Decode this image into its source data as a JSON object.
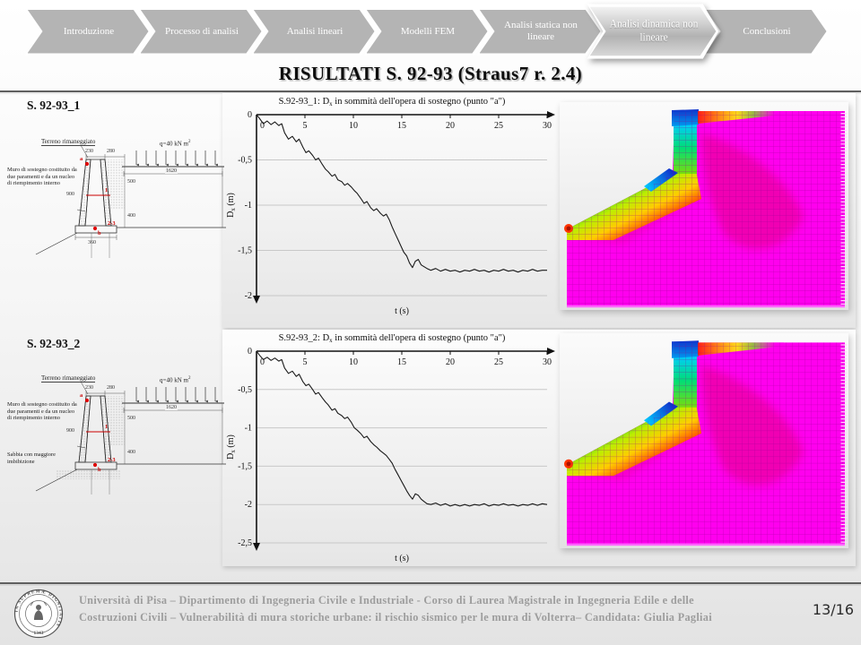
{
  "nav": {
    "items": [
      {
        "label": "Introduzione",
        "active": false
      },
      {
        "label": "Processo di analisi",
        "active": false
      },
      {
        "label": "Analisi lineari",
        "active": false
      },
      {
        "label": "Modelli FEM",
        "active": false
      },
      {
        "label": "Analisi statica non lineare",
        "active": false
      },
      {
        "label": "Analisi dinamica non lineare",
        "active": true
      },
      {
        "label": "Conclusioni",
        "active": false
      }
    ]
  },
  "title": "RISULTATI  S. 92-93 (Straus7 r. 2.4)",
  "sections": [
    {
      "heading": "S. 92-93_1",
      "diagram": {
        "terrain": "Terreno rimaneggiato",
        "load": "q=40 kN m",
        "load_exp": "2",
        "wall_desc": "Muro di sostegno costituito da due paramenti e da un nucleo di riempimento interno",
        "dims": {
          "top_left": "230",
          "top_right": "280",
          "right_upper": "500",
          "right_lower": "400",
          "embank": "1620",
          "mid": "900",
          "base": "360"
        },
        "markers": {
          "a": "a",
          "b": "b",
          "mid_line": "1",
          "base_pts": "2-3"
        }
      }
    },
    {
      "heading": "S. 92-93_2",
      "diagram": {
        "terrain": "Terreno rimaneggiato",
        "load": "q=40 kN m",
        "load_exp": "2",
        "wall_desc": "Muro di sostegno costituito da due paramenti e da un nucleo di riempimento interno",
        "sand": "Sabbia con maggiore imbibizione",
        "dims": {
          "top_left": "230",
          "top_right": "280",
          "right_upper": "500",
          "right_lower": "400",
          "embank": "1620",
          "mid": "900"
        },
        "markers": {
          "a": "a",
          "b": "b",
          "mid_line": "1",
          "base_pts": "2-3"
        }
      }
    }
  ],
  "chart_data": [
    {
      "type": "line",
      "title": "S.92-93_1: Dx in sommità dell'opera di sostegno (punto \"a\")",
      "title_parts": {
        "t1": "S.92-93_1: D",
        "sub": "x",
        "t2": " in sommità dell'opera di sostegno (punto \"a\")"
      },
      "xlabel": "t (s)",
      "ylabel": "Dx (m)",
      "ylabel_parts": {
        "t1": "D",
        "sub": "x",
        "t2": " (m)"
      },
      "xlim": [
        0,
        30
      ],
      "ylim": [
        -2,
        0
      ],
      "xticks": [
        0,
        5,
        10,
        15,
        20,
        25,
        30
      ],
      "yticks": [
        0,
        -0.5,
        -1,
        -1.5,
        -2
      ],
      "ytick_labels": [
        "0",
        "-0,5",
        "-1",
        "-1,5",
        "-2"
      ],
      "grid": true,
      "points": [
        [
          0,
          0
        ],
        [
          0.3,
          -0.04
        ],
        [
          0.7,
          -0.1
        ],
        [
          1.1,
          -0.07
        ],
        [
          1.5,
          -0.11
        ],
        [
          1.9,
          -0.08
        ],
        [
          2.3,
          -0.12
        ],
        [
          2.6,
          -0.1
        ],
        [
          2.9,
          -0.2
        ],
        [
          3.3,
          -0.27
        ],
        [
          3.7,
          -0.24
        ],
        [
          4.1,
          -0.3
        ],
        [
          4.4,
          -0.27
        ],
        [
          4.8,
          -0.36
        ],
        [
          5.1,
          -0.42
        ],
        [
          5.4,
          -0.4
        ],
        [
          5.8,
          -0.45
        ],
        [
          6.1,
          -0.5
        ],
        [
          6.4,
          -0.48
        ],
        [
          6.8,
          -0.55
        ],
        [
          7.1,
          -0.6
        ],
        [
          7.4,
          -0.63
        ],
        [
          7.8,
          -0.68
        ],
        [
          8.1,
          -0.66
        ],
        [
          8.4,
          -0.72
        ],
        [
          8.8,
          -0.74
        ],
        [
          9.1,
          -0.78
        ],
        [
          9.4,
          -0.76
        ],
        [
          9.8,
          -0.8
        ],
        [
          10.1,
          -0.84
        ],
        [
          10.4,
          -0.87
        ],
        [
          10.8,
          -0.93
        ],
        [
          11.1,
          -0.98
        ],
        [
          11.4,
          -0.96
        ],
        [
          11.8,
          -1.03
        ],
        [
          12.1,
          -1.06
        ],
        [
          12.4,
          -1.04
        ],
        [
          12.8,
          -1.09
        ],
        [
          13.1,
          -1.12
        ],
        [
          13.4,
          -1.1
        ],
        [
          13.7,
          -1.16
        ],
        [
          14,
          -1.24
        ],
        [
          14.3,
          -1.31
        ],
        [
          14.6,
          -1.38
        ],
        [
          14.9,
          -1.45
        ],
        [
          15.2,
          -1.52
        ],
        [
          15.5,
          -1.56
        ],
        [
          15.8,
          -1.64
        ],
        [
          16.1,
          -1.69
        ],
        [
          16.4,
          -1.62
        ],
        [
          16.7,
          -1.6
        ],
        [
          17,
          -1.66
        ],
        [
          17.3,
          -1.68
        ],
        [
          17.6,
          -1.7
        ],
        [
          18,
          -1.72
        ],
        [
          18.5,
          -1.7
        ],
        [
          19,
          -1.73
        ],
        [
          19.5,
          -1.71
        ],
        [
          20,
          -1.73
        ],
        [
          20.5,
          -1.72
        ],
        [
          21,
          -1.74
        ],
        [
          21.5,
          -1.72
        ],
        [
          22,
          -1.73
        ],
        [
          22.5,
          -1.71
        ],
        [
          23,
          -1.73
        ],
        [
          23.5,
          -1.72
        ],
        [
          24,
          -1.74
        ],
        [
          24.5,
          -1.72
        ],
        [
          25,
          -1.73
        ],
        [
          25.5,
          -1.71
        ],
        [
          26,
          -1.73
        ],
        [
          26.5,
          -1.72
        ],
        [
          27,
          -1.74
        ],
        [
          27.5,
          -1.72
        ],
        [
          28,
          -1.73
        ],
        [
          28.5,
          -1.71
        ],
        [
          29,
          -1.73
        ],
        [
          29.5,
          -1.72
        ],
        [
          30,
          -1.72
        ]
      ]
    },
    {
      "type": "line",
      "title": "S.92-93_2: Dx in sommità dell'opera di sostegno (punto \"a\")",
      "title_parts": {
        "t1": "S.92-93_2: D",
        "sub": "x",
        "t2": " in sommità dell'opera di sostegno (punto \"a\")"
      },
      "xlabel": "t (s)",
      "ylabel": "Dx (m)",
      "ylabel_parts": {
        "t1": "D",
        "sub": "x",
        "t2": " (m)"
      },
      "xlim": [
        0,
        30
      ],
      "ylim": [
        -2.5,
        0
      ],
      "xticks": [
        0,
        5,
        10,
        15,
        20,
        25,
        30
      ],
      "yticks": [
        0,
        -0.5,
        -1,
        -1.5,
        -2,
        -2.5
      ],
      "ytick_labels": [
        "0",
        "-0,5",
        "-1",
        "-1,5",
        "-2",
        "-2,5"
      ],
      "grid": true,
      "points": [
        [
          0,
          0
        ],
        [
          0.3,
          -0.05
        ],
        [
          0.7,
          -0.11
        ],
        [
          1.1,
          -0.08
        ],
        [
          1.5,
          -0.12
        ],
        [
          1.9,
          -0.09
        ],
        [
          2.3,
          -0.13
        ],
        [
          2.6,
          -0.11
        ],
        [
          2.9,
          -0.22
        ],
        [
          3.3,
          -0.29
        ],
        [
          3.7,
          -0.26
        ],
        [
          4.1,
          -0.33
        ],
        [
          4.4,
          -0.3
        ],
        [
          4.8,
          -0.4
        ],
        [
          5.1,
          -0.45
        ],
        [
          5.4,
          -0.43
        ],
        [
          5.8,
          -0.5
        ],
        [
          6.1,
          -0.56
        ],
        [
          6.4,
          -0.54
        ],
        [
          6.8,
          -0.61
        ],
        [
          7.1,
          -0.66
        ],
        [
          7.4,
          -0.7
        ],
        [
          7.8,
          -0.77
        ],
        [
          8.1,
          -0.75
        ],
        [
          8.4,
          -0.81
        ],
        [
          8.8,
          -0.84
        ],
        [
          9.1,
          -0.88
        ],
        [
          9.4,
          -0.86
        ],
        [
          9.8,
          -0.93
        ],
        [
          10.1,
          -1.0
        ],
        [
          10.4,
          -1.03
        ],
        [
          10.8,
          -1.08
        ],
        [
          11.1,
          -1.13
        ],
        [
          11.4,
          -1.11
        ],
        [
          11.8,
          -1.18
        ],
        [
          12.1,
          -1.22
        ],
        [
          12.4,
          -1.25
        ],
        [
          12.8,
          -1.3
        ],
        [
          13.1,
          -1.33
        ],
        [
          13.4,
          -1.36
        ],
        [
          13.7,
          -1.41
        ],
        [
          14,
          -1.46
        ],
        [
          14.3,
          -1.54
        ],
        [
          14.6,
          -1.61
        ],
        [
          14.9,
          -1.68
        ],
        [
          15.2,
          -1.75
        ],
        [
          15.5,
          -1.82
        ],
        [
          15.8,
          -1.88
        ],
        [
          16.1,
          -1.93
        ],
        [
          16.4,
          -1.86
        ],
        [
          16.7,
          -1.88
        ],
        [
          17,
          -1.93
        ],
        [
          17.3,
          -1.96
        ],
        [
          17.6,
          -1.99
        ],
        [
          18,
          -2.0
        ],
        [
          18.5,
          -1.98
        ],
        [
          19,
          -2.01
        ],
        [
          19.5,
          -1.99
        ],
        [
          20,
          -2.02
        ],
        [
          20.5,
          -2.0
        ],
        [
          21,
          -2.02
        ],
        [
          21.5,
          -2.0
        ],
        [
          22,
          -2.02
        ],
        [
          22.5,
          -2.0
        ],
        [
          23,
          -2.01
        ],
        [
          23.5,
          -1.99
        ],
        [
          24,
          -2.02
        ],
        [
          24.5,
          -2.0
        ],
        [
          25,
          -2.01
        ],
        [
          25.5,
          -1.99
        ],
        [
          26,
          -2.01
        ],
        [
          26.5,
          -2.0
        ],
        [
          27,
          -2.02
        ],
        [
          27.5,
          -2.0
        ],
        [
          28,
          -2.01
        ],
        [
          28.5,
          -1.99
        ],
        [
          29,
          -2.01
        ],
        [
          29.5,
          -1.99
        ],
        [
          30,
          -2.0
        ]
      ]
    }
  ],
  "footer": {
    "line1": "Università di Pisa – Dipartimento di Ingegneria Civile e Industriale - Corso di Laurea Magistrale in Ingegneria Edile e delle",
    "line2": "Costruzioni Civili – Vulnerabilità di mura storiche urbane: il rischio sismico per le mura di Volterra– Candidata:  Giulia Pagliai",
    "page": "13/16",
    "logo_motto": "IN SUPREMÆ DIGNITATIS",
    "logo_year": "1343"
  },
  "colors": {
    "mesh_base": "#ff00ee",
    "chevron": "#b4b4b4",
    "accent_red": "#cc0000"
  }
}
